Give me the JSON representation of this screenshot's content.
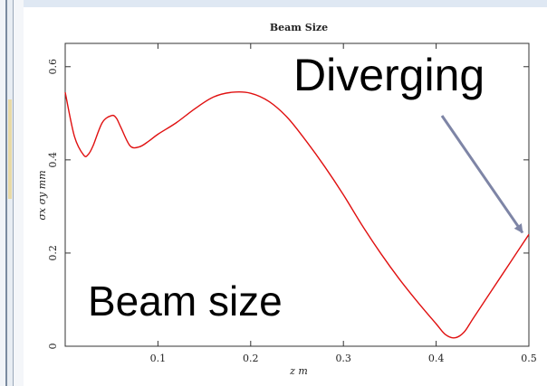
{
  "chart_data": {
    "type": "line",
    "title": "Beam Size",
    "xlabel": "z  m",
    "ylabel": "σx  σy  mm",
    "xlim": [
      0,
      0.5
    ],
    "ylim": [
      0,
      0.65
    ],
    "xticks": [
      0.1,
      0.2,
      0.3,
      0.4,
      0.5
    ],
    "xtick_labels": [
      "0.1",
      "0.2",
      "0.3",
      "0.4",
      "0.5"
    ],
    "yticks": [
      0,
      0.2,
      0.4,
      0.6
    ],
    "ytick_labels": [
      "0",
      "0.2",
      "0.4",
      "0.6"
    ],
    "grid": false,
    "series": [
      {
        "color": "#e01010",
        "x": [
          0.0,
          0.01,
          0.02,
          0.025,
          0.03,
          0.04,
          0.05,
          0.055,
          0.06,
          0.07,
          0.08,
          0.09,
          0.1,
          0.12,
          0.14,
          0.16,
          0.18,
          0.2,
          0.22,
          0.24,
          0.26,
          0.28,
          0.3,
          0.32,
          0.34,
          0.36,
          0.38,
          0.4,
          0.41,
          0.42,
          0.43,
          0.44,
          0.46,
          0.48,
          0.5
        ],
        "y": [
          0.545,
          0.45,
          0.41,
          0.412,
          0.43,
          0.48,
          0.495,
          0.49,
          0.47,
          0.43,
          0.428,
          0.44,
          0.455,
          0.48,
          0.51,
          0.535,
          0.545,
          0.543,
          0.525,
          0.49,
          0.44,
          0.385,
          0.325,
          0.26,
          0.2,
          0.145,
          0.095,
          0.048,
          0.025,
          0.018,
          0.03,
          0.06,
          0.12,
          0.18,
          0.24
        ]
      }
    ],
    "annotations": [
      {
        "text": "Diverging",
        "arrow_to": [
          0.495,
          0.24
        ]
      },
      {
        "text": "Beam size"
      }
    ]
  }
}
